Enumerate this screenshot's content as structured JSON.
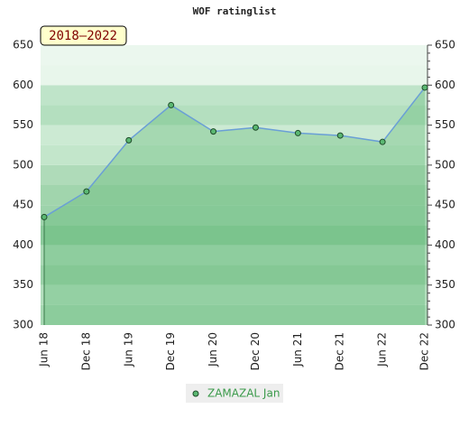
{
  "chart_data": {
    "type": "area",
    "title": "WOF ratinglist",
    "annotation": "2018–2022",
    "categories": [
      "Jun 18",
      "Dec 18",
      "Jun 19",
      "Dec 19",
      "Jun 20",
      "Dec 20",
      "Jun 21",
      "Dec 21",
      "Jun 22",
      "Dec 22"
    ],
    "series": [
      {
        "name": "ZAMAZAL Jan",
        "color": "#5bb872",
        "line_color": "#6a9fd6",
        "values": [
          435,
          467,
          531,
          575,
          542,
          547,
          540,
          537,
          529,
          597
        ]
      }
    ],
    "ylim": [
      300,
      650
    ],
    "yticks": [
      300,
      350,
      400,
      450,
      500,
      550,
      600,
      650
    ],
    "legend": "bottom"
  }
}
